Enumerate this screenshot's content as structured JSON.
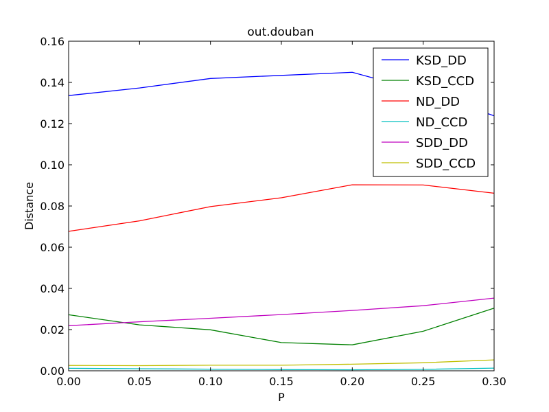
{
  "chart_data": {
    "type": "line",
    "title": "out.douban",
    "xlabel": "P",
    "ylabel": "Distance",
    "xlim": [
      0.0,
      0.3
    ],
    "ylim": [
      0.0,
      0.16
    ],
    "x_ticks": [
      "0.00",
      "0.05",
      "0.10",
      "0.15",
      "0.20",
      "0.25",
      "0.30"
    ],
    "y_ticks": [
      "0.00",
      "0.02",
      "0.04",
      "0.06",
      "0.08",
      "0.10",
      "0.12",
      "0.14",
      "0.16"
    ],
    "grid": false,
    "legend_position": "top-right",
    "x": [
      0.0,
      0.05,
      0.1,
      0.15,
      0.2,
      0.25,
      0.3
    ],
    "series": [
      {
        "name": "KSD_DD",
        "color": "#0000ff",
        "values": [
          0.1336,
          0.1373,
          0.1419,
          0.1434,
          0.1449,
          0.1355,
          0.1238
        ]
      },
      {
        "name": "KSD_CCD",
        "color": "#008000",
        "values": [
          0.0272,
          0.0223,
          0.0199,
          0.0137,
          0.0126,
          0.0192,
          0.0304
        ]
      },
      {
        "name": "ND_DD",
        "color": "#ff0000",
        "values": [
          0.0677,
          0.0728,
          0.0797,
          0.084,
          0.0903,
          0.0902,
          0.0862
        ]
      },
      {
        "name": "ND_CCD",
        "color": "#00bfbf",
        "values": [
          0.0012,
          0.001,
          0.0008,
          0.0006,
          0.0005,
          0.0007,
          0.0013
        ]
      },
      {
        "name": "SDD_DD",
        "color": "#bf00bf",
        "values": [
          0.0219,
          0.0238,
          0.0255,
          0.0273,
          0.0293,
          0.0316,
          0.0353
        ]
      },
      {
        "name": "SDD_CCD",
        "color": "#bfbf00",
        "values": [
          0.0026,
          0.0025,
          0.0027,
          0.0027,
          0.0032,
          0.0039,
          0.0053
        ]
      }
    ]
  }
}
